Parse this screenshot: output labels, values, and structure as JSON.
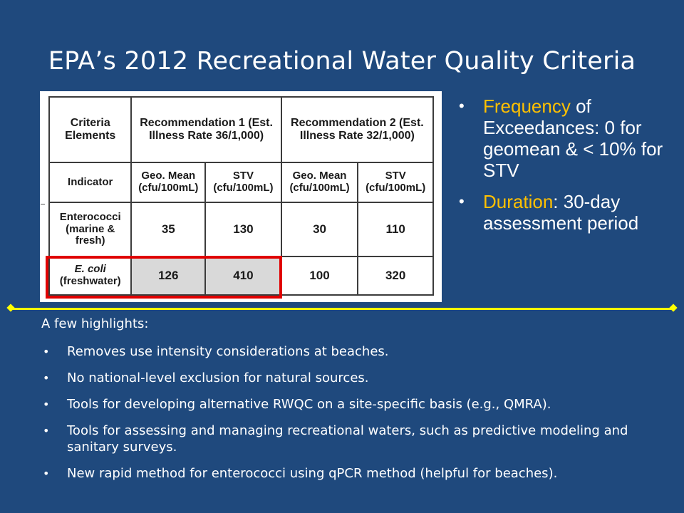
{
  "title": "EPA’s 2012 Recreational Water Quality Criteria",
  "table": {
    "criteria_elements": "Criteria Elements",
    "rec1": "Recommendation 1 (Est. Illness Rate 36/1,000)",
    "rec2": "Recommendation 2 (Est. Illness Rate 32/1,000)",
    "indicator": "Indicator",
    "geo_mean": "Geo. Mean (cfu/100mL)",
    "stv": "STV (cfu/100mL)",
    "rows": [
      {
        "name": "Enterococci (marine & fresh)",
        "v1": "35",
        "v2": "130",
        "v3": "30",
        "v4": "110"
      },
      {
        "name_italic": "E. coli",
        "name_rest": "(freshwater)",
        "v1": "126",
        "v2": "410",
        "v3": "100",
        "v4": "320"
      }
    ]
  },
  "right_bullets": [
    {
      "accent": "Frequency",
      "rest": " of Exceedances: 0 for geomean & < 10% for STV"
    },
    {
      "accent": "Duration",
      "rest": ": 30-day assessment period"
    }
  ],
  "highlights_title": "A few highlights:",
  "highlights": [
    "Removes use intensity considerations at beaches.",
    "No national-level exclusion for natural sources.",
    "Tools for developing alternative RWQC on a site-specific basis (e.g., QMRA).",
    "Tools for assessing and managing recreational waters, such as predictive modeling and sanitary surveys.",
    "New rapid method for enterococci using qPCR method (helpful for beaches)."
  ],
  "colors": {
    "background": "#1f497d",
    "accent": "#ffc000",
    "divider": "#ffff00",
    "highlight_box": "#e00000"
  }
}
